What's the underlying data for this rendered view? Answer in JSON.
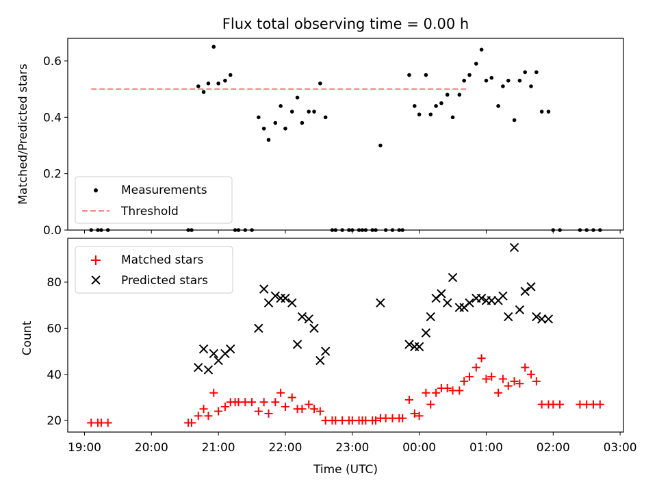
{
  "chart_data": [
    {
      "type": "scatter",
      "title": "Flux total observing time = 0.00 h",
      "xlabel": "",
      "ylabel": "Matched/Predicted stars",
      "xlim": [
        -0.25,
        8.05
      ],
      "ylim": [
        0,
        0.68
      ],
      "yticks": [
        0.0,
        0.2,
        0.4,
        0.6
      ],
      "ytick_labels": [
        "0.0",
        "0.2",
        "0.4",
        "0.6"
      ],
      "legend": {
        "position": "lower-left",
        "entries": [
          "Measurements",
          "Threshold"
        ]
      },
      "threshold": {
        "name": "Threshold",
        "y": 0.5,
        "x": [
          0.1,
          5.7
        ],
        "color": "#ff7f7f",
        "style": "dashed"
      },
      "series": [
        {
          "name": "Measurements",
          "marker": "dot",
          "color": "#000000",
          "points": [
            [
              0.1,
              0
            ],
            [
              0.2,
              0
            ],
            [
              0.25,
              0
            ],
            [
              0.35,
              0
            ],
            [
              1.55,
              0
            ],
            [
              1.6,
              0
            ],
            [
              1.7,
              0.51
            ],
            [
              1.78,
              0.49
            ],
            [
              1.85,
              0.52
            ],
            [
              1.93,
              0.65
            ],
            [
              2.0,
              0.52
            ],
            [
              2.1,
              0.53
            ],
            [
              2.18,
              0.55
            ],
            [
              2.25,
              0
            ],
            [
              2.3,
              0
            ],
            [
              2.4,
              0
            ],
            [
              2.5,
              0
            ],
            [
              2.6,
              0.4
            ],
            [
              2.68,
              0.36
            ],
            [
              2.75,
              0.32
            ],
            [
              2.85,
              0.38
            ],
            [
              2.93,
              0.44
            ],
            [
              3.0,
              0.36
            ],
            [
              3.1,
              0.42
            ],
            [
              3.18,
              0.47
            ],
            [
              3.25,
              0.38
            ],
            [
              3.35,
              0.42
            ],
            [
              3.43,
              0.42
            ],
            [
              3.52,
              0.52
            ],
            [
              3.6,
              0.4
            ],
            [
              3.7,
              0
            ],
            [
              3.75,
              0
            ],
            [
              3.85,
              0
            ],
            [
              3.95,
              0
            ],
            [
              4.0,
              0
            ],
            [
              4.1,
              0
            ],
            [
              4.15,
              0
            ],
            [
              4.2,
              0
            ],
            [
              4.3,
              0
            ],
            [
              4.35,
              0
            ],
            [
              4.42,
              0.3
            ],
            [
              4.5,
              0
            ],
            [
              4.6,
              0
            ],
            [
              4.7,
              0
            ],
            [
              4.75,
              0
            ],
            [
              4.85,
              0.55
            ],
            [
              4.93,
              0.44
            ],
            [
              5.0,
              0.41
            ],
            [
              5.1,
              0.55
            ],
            [
              5.17,
              0.41
            ],
            [
              5.25,
              0.44
            ],
            [
              5.33,
              0.45
            ],
            [
              5.42,
              0.48
            ],
            [
              5.5,
              0.4
            ],
            [
              5.6,
              0.48
            ],
            [
              5.67,
              0.53
            ],
            [
              5.75,
              0.55
            ],
            [
              5.85,
              0.59
            ],
            [
              5.93,
              0.64
            ],
            [
              6.0,
              0.53
            ],
            [
              6.08,
              0.54
            ],
            [
              6.18,
              0.44
            ],
            [
              6.25,
              0.51
            ],
            [
              6.33,
              0.53
            ],
            [
              6.42,
              0.39
            ],
            [
              6.5,
              0.53
            ],
            [
              6.58,
              0.56
            ],
            [
              6.67,
              0.51
            ],
            [
              6.75,
              0.56
            ],
            [
              6.83,
              0.42
            ],
            [
              6.93,
              0.42
            ],
            [
              7.0,
              0
            ],
            [
              7.1,
              0
            ],
            [
              7.4,
              0
            ],
            [
              7.5,
              0
            ],
            [
              7.6,
              0
            ],
            [
              7.7,
              0
            ]
          ]
        }
      ]
    },
    {
      "type": "scatter",
      "title": "",
      "xlabel": "Time (UTC)",
      "ylabel": "Count",
      "xlim": [
        -0.25,
        8.05
      ],
      "ylim": [
        15,
        99
      ],
      "yticks": [
        20,
        40,
        60,
        80
      ],
      "ytick_labels": [
        "20",
        "40",
        "60",
        "80"
      ],
      "xticks": [
        0,
        1,
        2,
        3,
        4,
        5,
        6,
        7,
        8
      ],
      "xtick_labels": [
        "19:00",
        "20:00",
        "21:00",
        "22:00",
        "23:00",
        "00:00",
        "01:00",
        "02:00",
        "03:00"
      ],
      "legend": {
        "position": "top-left",
        "entries": [
          "Matched stars",
          "Predicted stars"
        ]
      },
      "series": [
        {
          "name": "Matched stars",
          "marker": "plus",
          "color": "#ff0000",
          "points": [
            [
              0.1,
              19
            ],
            [
              0.2,
              19
            ],
            [
              0.25,
              19
            ],
            [
              0.35,
              19
            ],
            [
              1.55,
              19
            ],
            [
              1.6,
              19
            ],
            [
              1.7,
              22
            ],
            [
              1.78,
              25
            ],
            [
              1.85,
              22
            ],
            [
              1.93,
              32
            ],
            [
              2.0,
              24
            ],
            [
              2.1,
              26
            ],
            [
              2.18,
              28
            ],
            [
              2.25,
              28
            ],
            [
              2.3,
              28
            ],
            [
              2.4,
              28
            ],
            [
              2.5,
              28
            ],
            [
              2.6,
              24
            ],
            [
              2.68,
              28
            ],
            [
              2.75,
              23
            ],
            [
              2.85,
              28
            ],
            [
              2.93,
              32
            ],
            [
              3.0,
              26
            ],
            [
              3.1,
              30
            ],
            [
              3.18,
              25
            ],
            [
              3.25,
              25
            ],
            [
              3.35,
              27
            ],
            [
              3.43,
              25
            ],
            [
              3.52,
              24
            ],
            [
              3.6,
              20
            ],
            [
              3.7,
              20
            ],
            [
              3.75,
              20
            ],
            [
              3.85,
              20
            ],
            [
              3.95,
              20
            ],
            [
              4.0,
              20
            ],
            [
              4.1,
              20
            ],
            [
              4.15,
              20
            ],
            [
              4.2,
              20
            ],
            [
              4.3,
              20
            ],
            [
              4.35,
              20
            ],
            [
              4.42,
              21
            ],
            [
              4.5,
              21
            ],
            [
              4.6,
              21
            ],
            [
              4.7,
              21
            ],
            [
              4.75,
              21
            ],
            [
              4.85,
              29
            ],
            [
              4.93,
              23
            ],
            [
              5.0,
              22
            ],
            [
              5.1,
              32
            ],
            [
              5.17,
              27
            ],
            [
              5.25,
              32
            ],
            [
              5.33,
              34
            ],
            [
              5.42,
              34
            ],
            [
              5.5,
              33
            ],
            [
              5.6,
              33
            ],
            [
              5.67,
              37
            ],
            [
              5.75,
              39
            ],
            [
              5.85,
              43
            ],
            [
              5.93,
              47
            ],
            [
              6.0,
              38
            ],
            [
              6.08,
              39
            ],
            [
              6.18,
              32
            ],
            [
              6.25,
              38
            ],
            [
              6.33,
              35
            ],
            [
              6.42,
              37
            ],
            [
              6.5,
              36
            ],
            [
              6.58,
              43
            ],
            [
              6.67,
              40
            ],
            [
              6.75,
              37
            ],
            [
              6.83,
              27
            ],
            [
              6.93,
              27
            ],
            [
              7.0,
              27
            ],
            [
              7.1,
              27
            ],
            [
              7.4,
              27
            ],
            [
              7.5,
              27
            ],
            [
              7.6,
              27
            ],
            [
              7.7,
              27
            ]
          ]
        },
        {
          "name": "Predicted stars",
          "marker": "x",
          "color": "#000000",
          "points": [
            [
              1.7,
              43
            ],
            [
              1.78,
              51
            ],
            [
              1.85,
              42
            ],
            [
              1.93,
              49
            ],
            [
              2.0,
              46
            ],
            [
              2.1,
              49
            ],
            [
              2.18,
              51
            ],
            [
              2.6,
              60
            ],
            [
              2.68,
              77
            ],
            [
              2.75,
              71
            ],
            [
              2.85,
              74
            ],
            [
              2.93,
              73
            ],
            [
              3.0,
              73
            ],
            [
              3.1,
              71
            ],
            [
              3.18,
              53
            ],
            [
              3.25,
              65
            ],
            [
              3.35,
              64
            ],
            [
              3.43,
              60
            ],
            [
              3.52,
              46
            ],
            [
              3.6,
              50
            ],
            [
              4.42,
              71
            ],
            [
              4.85,
              53
            ],
            [
              4.93,
              52
            ],
            [
              5.0,
              52
            ],
            [
              5.1,
              58
            ],
            [
              5.17,
              65
            ],
            [
              5.25,
              73
            ],
            [
              5.33,
              75
            ],
            [
              5.42,
              71
            ],
            [
              5.5,
              82
            ],
            [
              5.6,
              69
            ],
            [
              5.67,
              69
            ],
            [
              5.75,
              71
            ],
            [
              5.85,
              73
            ],
            [
              5.93,
              73
            ],
            [
              6.0,
              72
            ],
            [
              6.08,
              72
            ],
            [
              6.18,
              72
            ],
            [
              6.25,
              74
            ],
            [
              6.33,
              65
            ],
            [
              6.42,
              95
            ],
            [
              6.5,
              68
            ],
            [
              6.58,
              76
            ],
            [
              6.67,
              78
            ],
            [
              6.75,
              65
            ],
            [
              6.83,
              64
            ],
            [
              6.93,
              64
            ]
          ]
        }
      ]
    }
  ]
}
